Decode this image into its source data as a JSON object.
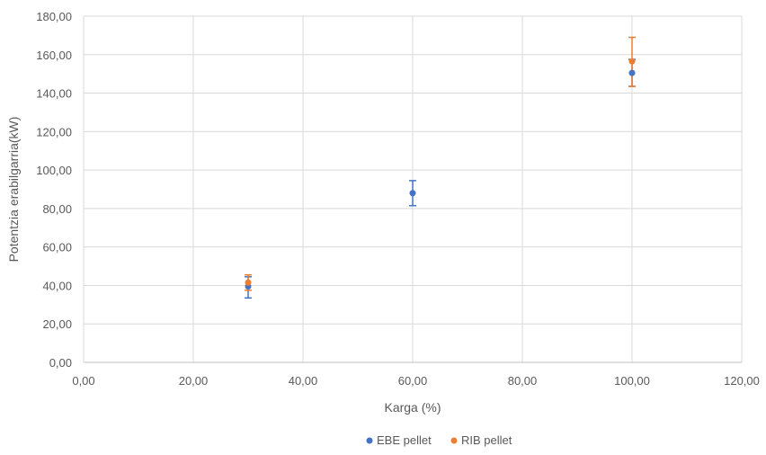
{
  "chart_data": {
    "type": "scatter",
    "title": "",
    "xlabel": "Karga (%)",
    "ylabel": "Potentzia erabilgarria(kW)",
    "xlim": [
      0,
      120
    ],
    "ylim": [
      0,
      180
    ],
    "x_ticks": [
      "0,00",
      "20,00",
      "40,00",
      "60,00",
      "80,00",
      "100,00",
      "120,00"
    ],
    "y_ticks": [
      "0,00",
      "20,00",
      "40,00",
      "60,00",
      "80,00",
      "100,00",
      "120,00",
      "140,00",
      "160,00",
      "180,00"
    ],
    "grid": true,
    "legend_position": "bottom",
    "series": [
      {
        "name": "EBE pellet",
        "color": "#4472c4",
        "points": [
          {
            "x": 30,
            "y": 39.5,
            "err_low": 33.5,
            "err_high": 44.5
          },
          {
            "x": 60,
            "y": 88.0,
            "err_low": 81.5,
            "err_high": 94.5
          },
          {
            "x": 100,
            "y": 150.5,
            "err_low": 143.5,
            "err_high": 157.5
          }
        ]
      },
      {
        "name": "RIB pellet",
        "color": "#ed7d31",
        "points": [
          {
            "x": 30,
            "y": 41.5,
            "err_low": 37.5,
            "err_high": 45.5
          },
          {
            "x": 100,
            "y": 156.5,
            "err_low": 143.5,
            "err_high": 169.0
          }
        ]
      }
    ]
  }
}
